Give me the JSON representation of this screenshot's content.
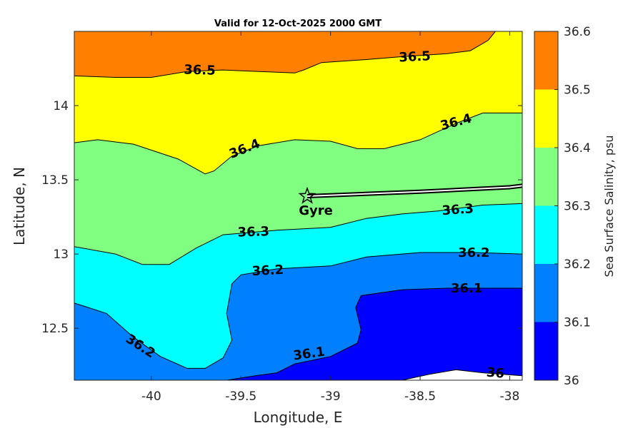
{
  "chart_data": {
    "type": "contour",
    "title": "Valid for 12-Oct-2025 2000 GMT",
    "xlabel": "Longitude, E",
    "ylabel": "Latitude, N",
    "xlim": [
      -40.43,
      -37.93
    ],
    "ylim": [
      12.15,
      14.5
    ],
    "xticks": [
      {
        "value": -40,
        "label": "-40"
      },
      {
        "value": -39.5,
        "label": "-39.5"
      },
      {
        "value": -39,
        "label": "-39"
      },
      {
        "value": -38.5,
        "label": "-38.5"
      },
      {
        "value": -38,
        "label": "-38"
      }
    ],
    "yticks": [
      {
        "value": 12.5,
        "label": "12.5"
      },
      {
        "value": 13,
        "label": "13"
      },
      {
        "value": 13.5,
        "label": "13.5"
      },
      {
        "value": 14,
        "label": "14"
      }
    ],
    "grid": false,
    "colorbar": {
      "label": "Sea Surface Salinity, psu",
      "range": [
        36,
        36.6
      ],
      "ticks": [
        {
          "value": 36,
          "label": "36"
        },
        {
          "value": 36.1,
          "label": "36.1"
        },
        {
          "value": 36.2,
          "label": "36.2"
        },
        {
          "value": 36.3,
          "label": "36.3"
        },
        {
          "value": 36.4,
          "label": "36.4"
        },
        {
          "value": 36.5,
          "label": "36.5"
        },
        {
          "value": 36.6,
          "label": "36.6"
        }
      ],
      "bands": [
        {
          "from": 36.0,
          "to": 36.1,
          "color": "#0000ff"
        },
        {
          "from": 36.1,
          "to": 36.2,
          "color": "#0080ff"
        },
        {
          "from": 36.2,
          "to": 36.3,
          "color": "#00ffff"
        },
        {
          "from": 36.3,
          "to": 36.4,
          "color": "#80ff80"
        },
        {
          "from": 36.4,
          "to": 36.5,
          "color": "#ffff00"
        },
        {
          "from": 36.5,
          "to": 36.6,
          "color": "#ff8000"
        }
      ]
    },
    "contours": [
      {
        "level": 36.5,
        "points": [
          [
            -40.43,
            14.2
          ],
          [
            -40.2,
            14.19
          ],
          [
            -40.0,
            14.19
          ],
          [
            -39.8,
            14.23
          ],
          [
            -39.6,
            14.24
          ],
          [
            -39.4,
            14.23
          ],
          [
            -39.2,
            14.22
          ],
          [
            -39.15,
            14.24
          ],
          [
            -39.05,
            14.29
          ],
          [
            -38.8,
            14.31
          ],
          [
            -38.6,
            14.33
          ],
          [
            -38.35,
            14.35
          ],
          [
            -38.22,
            14.37
          ],
          [
            -38.12,
            14.44
          ],
          [
            -38.08,
            14.5
          ]
        ]
      },
      {
        "level": 36.4,
        "points": [
          [
            -40.43,
            13.75
          ],
          [
            -40.3,
            13.77
          ],
          [
            -40.1,
            13.74
          ],
          [
            -39.85,
            13.64
          ],
          [
            -39.7,
            13.54
          ],
          [
            -39.65,
            13.56
          ],
          [
            -39.55,
            13.66
          ],
          [
            -39.4,
            13.73
          ],
          [
            -39.2,
            13.77
          ],
          [
            -39.0,
            13.76
          ],
          [
            -38.85,
            13.71
          ],
          [
            -38.7,
            13.71
          ],
          [
            -38.5,
            13.77
          ],
          [
            -38.3,
            13.88
          ],
          [
            -38.15,
            13.95
          ],
          [
            -37.93,
            13.95
          ]
        ]
      },
      {
        "level": 36.3,
        "points": [
          [
            -40.43,
            13.05
          ],
          [
            -40.2,
            13.0
          ],
          [
            -40.05,
            12.93
          ],
          [
            -39.9,
            12.93
          ],
          [
            -39.75,
            13.04
          ],
          [
            -39.6,
            13.13
          ],
          [
            -39.3,
            13.16
          ],
          [
            -39.0,
            13.18
          ],
          [
            -38.8,
            13.24
          ],
          [
            -38.6,
            13.27
          ],
          [
            -38.4,
            13.29
          ],
          [
            -38.15,
            13.33
          ],
          [
            -37.93,
            13.34
          ]
        ]
      },
      {
        "level": 36.2,
        "points": [
          [
            -40.43,
            12.67
          ],
          [
            -40.25,
            12.6
          ],
          [
            -40.1,
            12.44
          ],
          [
            -39.95,
            12.31
          ],
          [
            -39.8,
            12.23
          ],
          [
            -39.7,
            12.23
          ],
          [
            -39.6,
            12.3
          ],
          [
            -39.55,
            12.42
          ],
          [
            -39.58,
            12.6
          ],
          [
            -39.55,
            12.8
          ],
          [
            -39.5,
            12.86
          ],
          [
            -39.3,
            12.9
          ],
          [
            -39.0,
            12.92
          ],
          [
            -38.8,
            12.98
          ],
          [
            -38.5,
            13.01
          ],
          [
            -38.2,
            13.01
          ],
          [
            -37.93,
            13.0
          ]
        ]
      },
      {
        "level": 36.1,
        "points": [
          [
            -39.58,
            12.15
          ],
          [
            -39.42,
            12.18
          ],
          [
            -39.3,
            12.2
          ],
          [
            -39.2,
            12.26
          ],
          [
            -39.0,
            12.31
          ],
          [
            -38.85,
            12.4
          ],
          [
            -38.83,
            12.49
          ],
          [
            -38.86,
            12.64
          ],
          [
            -38.83,
            12.72
          ],
          [
            -38.6,
            12.76
          ],
          [
            -38.35,
            12.77
          ],
          [
            -38.15,
            12.77
          ],
          [
            -37.93,
            12.77
          ]
        ]
      },
      {
        "level": 36.0,
        "points": [
          [
            -38.6,
            12.15
          ],
          [
            -38.45,
            12.19
          ],
          [
            -38.3,
            12.22
          ],
          [
            -38.15,
            12.2
          ],
          [
            -37.93,
            12.18
          ]
        ]
      }
    ],
    "contour_labels": [
      {
        "text": "36.5",
        "x": -39.73,
        "y": 14.24,
        "rotation": 2
      },
      {
        "text": "36.5",
        "x": -38.53,
        "y": 14.33,
        "rotation": -3
      },
      {
        "text": "36.4",
        "x": -39.48,
        "y": 13.71,
        "rotation": -22
      },
      {
        "text": "36.4",
        "x": -38.3,
        "y": 13.89,
        "rotation": -15
      },
      {
        "text": "36.3",
        "x": -39.43,
        "y": 13.15,
        "rotation": -2
      },
      {
        "text": "36.3",
        "x": -38.29,
        "y": 13.3,
        "rotation": -4
      },
      {
        "text": "36.2",
        "x": -39.35,
        "y": 12.89,
        "rotation": -3
      },
      {
        "text": "36.2",
        "x": -38.2,
        "y": 13.01,
        "rotation": 0
      },
      {
        "text": "36.2",
        "x": -40.06,
        "y": 12.38,
        "rotation": 33
      },
      {
        "text": "36.1",
        "x": -38.24,
        "y": 12.77,
        "rotation": 0
      },
      {
        "text": "36.1",
        "x": -39.12,
        "y": 12.33,
        "rotation": -8
      },
      {
        "text": "36",
        "x": -38.08,
        "y": 12.2,
        "rotation": 5
      }
    ],
    "annotations": [
      {
        "text": "Gyre",
        "marker": "star",
        "x": -39.13,
        "y": 13.39,
        "track": [
          [
            -39.13,
            13.39
          ],
          [
            -38.5,
            13.42
          ],
          [
            -38.0,
            13.45
          ],
          [
            -37.93,
            13.46
          ]
        ]
      }
    ]
  }
}
